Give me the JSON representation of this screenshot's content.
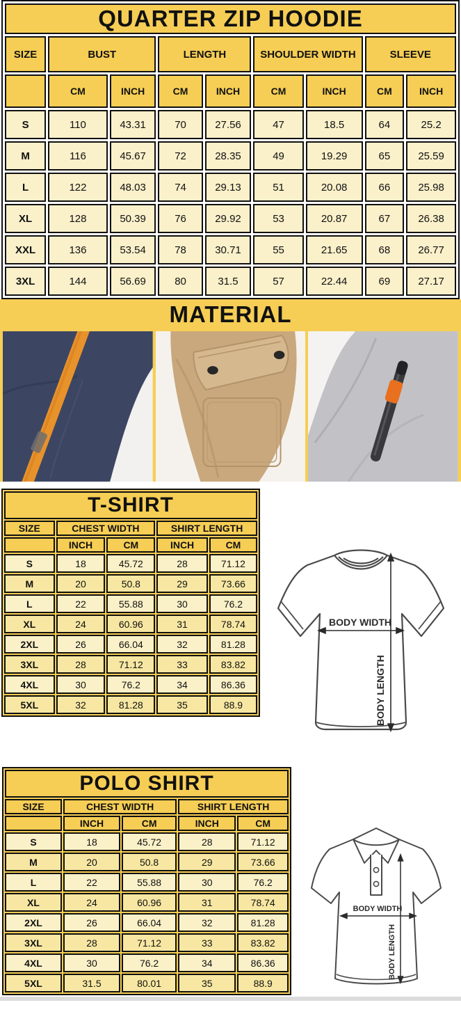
{
  "hoodie": {
    "title": "QUARTER ZIP HOODIE",
    "head": {
      "size": "SIZE",
      "bust": "BUST",
      "length": "LENGTH",
      "shoulder": "SHOULDER WIDTH",
      "sleeve": "SLEEVE"
    },
    "units": {
      "cm": "CM",
      "inch": "INCH"
    },
    "rows": [
      [
        "S",
        "110",
        "43.31",
        "70",
        "27.56",
        "47",
        "18.5",
        "64",
        "25.2"
      ],
      [
        "M",
        "116",
        "45.67",
        "72",
        "28.35",
        "49",
        "19.29",
        "65",
        "25.59"
      ],
      [
        "L",
        "122",
        "48.03",
        "74",
        "29.13",
        "51",
        "20.08",
        "66",
        "25.98"
      ],
      [
        "XL",
        "128",
        "50.39",
        "76",
        "29.92",
        "53",
        "20.87",
        "67",
        "26.38"
      ],
      [
        "XXL",
        "136",
        "53.54",
        "78",
        "30.71",
        "55",
        "21.65",
        "68",
        "26.77"
      ],
      [
        "3XL",
        "144",
        "56.69",
        "80",
        "31.5",
        "57",
        "22.44",
        "69",
        "27.17"
      ]
    ]
  },
  "material": {
    "title": "MATERIAL",
    "photos": [
      {
        "name": "navy fleece with orange drawstring"
      },
      {
        "name": "khaki flap pocket with snap buttons"
      },
      {
        "name": "heather gray fleece with zip pocket"
      }
    ]
  },
  "tshirt": {
    "title": "T-SHIRT",
    "head": {
      "size": "SIZE",
      "chest": "CHEST WIDTH",
      "length": "SHIRT LENGTH",
      "inch": "INCH",
      "cm": "CM"
    },
    "rows": [
      [
        "S",
        "18",
        "45.72",
        "28",
        "71.12"
      ],
      [
        "M",
        "20",
        "50.8",
        "29",
        "73.66"
      ],
      [
        "L",
        "22",
        "55.88",
        "30",
        "76.2"
      ],
      [
        "XL",
        "24",
        "60.96",
        "31",
        "78.74"
      ],
      [
        "2XL",
        "26",
        "66.04",
        "32",
        "81.28"
      ],
      [
        "3XL",
        "28",
        "71.12",
        "33",
        "83.82"
      ],
      [
        "4XL",
        "30",
        "76.2",
        "34",
        "86.36"
      ],
      [
        "5XL",
        "32",
        "81.28",
        "35",
        "88.9"
      ]
    ]
  },
  "polo": {
    "title": "POLO SHIRT",
    "head": {
      "size": "SIZE",
      "chest": "CHEST WIDTH",
      "length": "SHIRT LENGTH",
      "inch": "INCH",
      "cm": "CM"
    },
    "rows": [
      [
        "S",
        "18",
        "45.72",
        "28",
        "71.12"
      ],
      [
        "M",
        "20",
        "50.8",
        "29",
        "73.66"
      ],
      [
        "L",
        "22",
        "55.88",
        "30",
        "76.2"
      ],
      [
        "XL",
        "24",
        "60.96",
        "31",
        "78.74"
      ],
      [
        "2XL",
        "26",
        "66.04",
        "32",
        "81.28"
      ],
      [
        "3XL",
        "28",
        "71.12",
        "33",
        "83.82"
      ],
      [
        "4XL",
        "30",
        "76.2",
        "34",
        "86.36"
      ],
      [
        "5XL",
        "31.5",
        "80.01",
        "35",
        "88.9"
      ]
    ]
  },
  "diagrams": {
    "body_width": "BODY WIDTH",
    "body_length": "BODY LENGTH"
  },
  "colors": {
    "header_yellow": "#F6CE55",
    "cell_cream": "#FAF0CA",
    "cell_cream_alt": "#F7E7A2",
    "border_black": "#101010",
    "navy_fabric": "#3C4663",
    "orange_accent": "#E8922C",
    "khaki_fabric": "#C9A87D",
    "gray_fabric": "#C2C2C6"
  }
}
